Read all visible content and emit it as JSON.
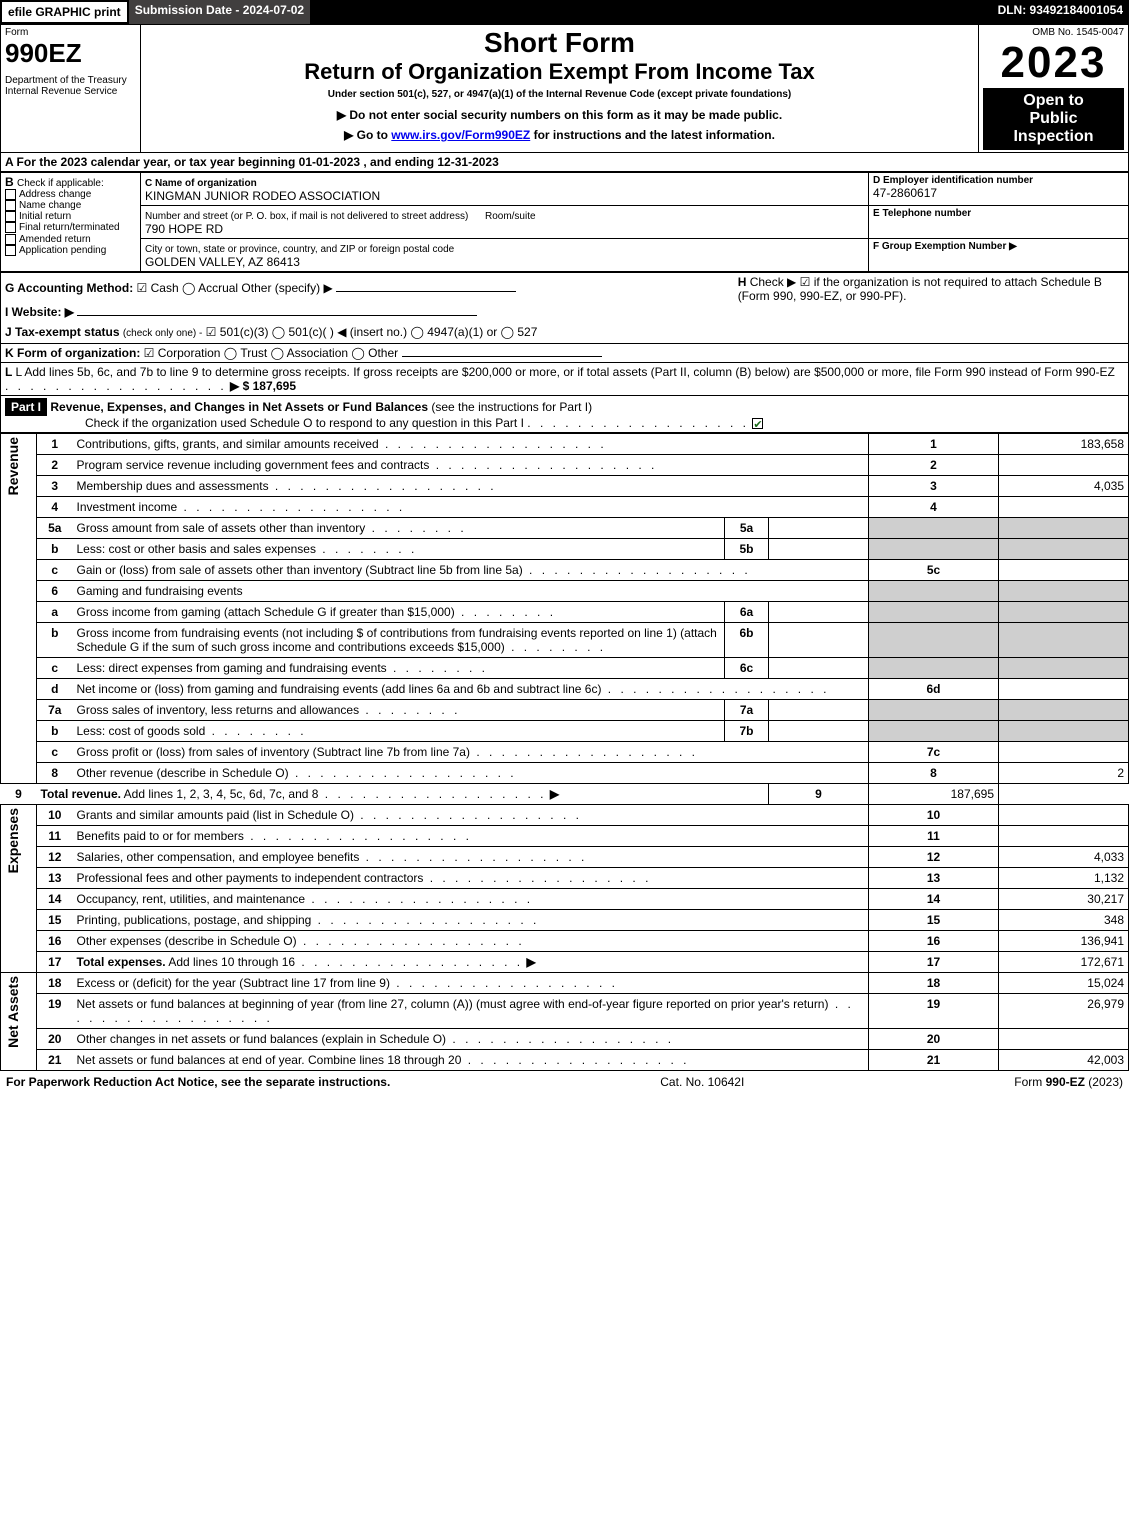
{
  "topbar": {
    "efile": "efile GRAPHIC print",
    "submission_label": "Submission Date - 2024-07-02",
    "dln": "DLN: 93492184001054"
  },
  "header": {
    "form_word": "Form",
    "form_number": "990EZ",
    "dept": "Department of the Treasury\nInternal Revenue Service",
    "short_form": "Short Form",
    "title": "Return of Organization Exempt From Income Tax",
    "under": "Under section 501(c), 527, or 4947(a)(1) of the Internal Revenue Code (except private foundations)",
    "warn": "▶ Do not enter social security numbers on this form as it may be made public.",
    "goto_pre": "▶ Go to ",
    "goto_link": "www.irs.gov/Form990EZ",
    "goto_post": " for instructions and the latest information.",
    "omb": "OMB No. 1545-0047",
    "year": "2023",
    "open": "Open to\nPublic\nInspection"
  },
  "section_a": "A  For the 2023 calendar year, or tax year beginning 01-01-2023 , and ending 12-31-2023",
  "section_b": {
    "label": "B",
    "check_if": "Check if applicable:",
    "opts": [
      "Address change",
      "Name change",
      "Initial return",
      "Final return/terminated",
      "Amended return",
      "Application pending"
    ]
  },
  "section_c": {
    "name_label": "C Name of organization",
    "name": "KINGMAN JUNIOR RODEO ASSOCIATION",
    "street_label": "Number and street (or P. O. box, if mail is not delivered to street address)",
    "room_label": "Room/suite",
    "street": "790 HOPE RD",
    "city_label": "City or town, state or province, country, and ZIP or foreign postal code",
    "city": "GOLDEN VALLEY, AZ  86413"
  },
  "section_d": {
    "label": "D Employer identification number",
    "ein": "47-2860617"
  },
  "section_e": {
    "label": "E Telephone number"
  },
  "section_f": {
    "label": "F Group Exemption Number   ▶"
  },
  "section_g": {
    "label": "G Accounting Method:",
    "opts": "☑ Cash  ◯ Accrual   Other (specify) ▶"
  },
  "section_h": {
    "label": "H",
    "text": "Check ▶ ☑ if the organization is not required to attach Schedule B (Form 990, 990-EZ, or 990-PF)."
  },
  "section_i": {
    "label": "I Website: ▶"
  },
  "section_j": {
    "label": "J Tax-exempt status",
    "sub": "(check only one) -",
    "opts": "☑ 501(c)(3) ◯ 501(c)(  ) ◀ (insert no.) ◯ 4947(a)(1) or ◯ 527"
  },
  "section_k": {
    "label": "K Form of organization:",
    "opts": "☑ Corporation  ◯ Trust  ◯ Association  ◯ Other"
  },
  "section_l": {
    "text": "L Add lines 5b, 6c, and 7b to line 9 to determine gross receipts. If gross receipts are $200,000 or more, or if total assets (Part II, column (B) below) are $500,000 or more, file Form 990 instead of Form 990-EZ",
    "amount_arrow": "▶ $ 187,695"
  },
  "part1": {
    "tag": "Part I",
    "title": "Revenue, Expenses, and Changes in Net Assets or Fund Balances",
    "see": "(see the instructions for Part I)",
    "check_line": "Check if the organization used Schedule O to respond to any question in this Part I",
    "sections": {
      "revenue": "Revenue",
      "expenses": "Expenses",
      "net": "Net Assets"
    }
  },
  "lines": [
    {
      "n": "1",
      "t": "Contributions, gifts, grants, and similar amounts received",
      "box": "1",
      "val": "183,658"
    },
    {
      "n": "2",
      "t": "Program service revenue including government fees and contracts",
      "box": "2",
      "val": ""
    },
    {
      "n": "3",
      "t": "Membership dues and assessments",
      "box": "3",
      "val": "4,035"
    },
    {
      "n": "4",
      "t": "Investment income",
      "box": "4",
      "val": ""
    },
    {
      "n": "5a",
      "t": "Gross amount from sale of assets other than inventory",
      "mid": "5a"
    },
    {
      "n": "b",
      "t": "Less: cost or other basis and sales expenses",
      "mid": "5b"
    },
    {
      "n": "c",
      "t": "Gain or (loss) from sale of assets other than inventory (Subtract line 5b from line 5a)",
      "box": "5c",
      "val": ""
    },
    {
      "n": "6",
      "t": "Gaming and fundraising events",
      "nohline": true
    },
    {
      "n": "a",
      "t": "Gross income from gaming (attach Schedule G if greater than $15,000)",
      "mid": "6a"
    },
    {
      "n": "b",
      "t": "Gross income from fundraising events (not including $                      of contributions from fundraising events reported on line 1) (attach Schedule G if the sum of such gross income and contributions exceeds $15,000)",
      "mid": "6b",
      "extra": ".   ."
    },
    {
      "n": "c",
      "t": "Less: direct expenses from gaming and fundraising events",
      "mid": "6c"
    },
    {
      "n": "d",
      "t": "Net income or (loss) from gaming and fundraising events (add lines 6a and 6b and subtract line 6c)",
      "box": "6d",
      "val": ""
    },
    {
      "n": "7a",
      "t": "Gross sales of inventory, less returns and allowances",
      "mid": "7a"
    },
    {
      "n": "b",
      "t": "Less: cost of goods sold",
      "mid": "7b"
    },
    {
      "n": "c",
      "t": "Gross profit or (loss) from sales of inventory (Subtract line 7b from line 7a)",
      "box": "7c",
      "val": ""
    },
    {
      "n": "8",
      "t": "Other revenue (describe in Schedule O)",
      "box": "8",
      "val": "2"
    },
    {
      "n": "9",
      "t": "Total revenue. Add lines 1, 2, 3, 4, 5c, 6d, 7c, and 8",
      "box": "9",
      "val": "187,695",
      "arrow": true,
      "bold": true
    }
  ],
  "exp_lines": [
    {
      "n": "10",
      "t": "Grants and similar amounts paid (list in Schedule O)",
      "box": "10",
      "val": ""
    },
    {
      "n": "11",
      "t": "Benefits paid to or for members",
      "box": "11",
      "val": ""
    },
    {
      "n": "12",
      "t": "Salaries, other compensation, and employee benefits",
      "box": "12",
      "val": "4,033"
    },
    {
      "n": "13",
      "t": "Professional fees and other payments to independent contractors",
      "box": "13",
      "val": "1,132"
    },
    {
      "n": "14",
      "t": "Occupancy, rent, utilities, and maintenance",
      "box": "14",
      "val": "30,217"
    },
    {
      "n": "15",
      "t": "Printing, publications, postage, and shipping",
      "box": "15",
      "val": "348"
    },
    {
      "n": "16",
      "t": "Other expenses (describe in Schedule O)",
      "box": "16",
      "val": "136,941"
    },
    {
      "n": "17",
      "t": "Total expenses. Add lines 10 through 16",
      "box": "17",
      "val": "172,671",
      "arrow": true,
      "bold": true
    }
  ],
  "net_lines": [
    {
      "n": "18",
      "t": "Excess or (deficit) for the year (Subtract line 17 from line 9)",
      "box": "18",
      "val": "15,024"
    },
    {
      "n": "19",
      "t": "Net assets or fund balances at beginning of year (from line 27, column (A)) (must agree with end-of-year figure reported on prior year's return)",
      "box": "19",
      "val": "26,979"
    },
    {
      "n": "20",
      "t": "Other changes in net assets or fund balances (explain in Schedule O)",
      "box": "20",
      "val": ""
    },
    {
      "n": "21",
      "t": "Net assets or fund balances at end of year. Combine lines 18 through 20",
      "box": "21",
      "val": "42,003"
    }
  ],
  "footer": {
    "left": "For Paperwork Reduction Act Notice, see the separate instructions.",
    "mid": "Cat. No. 10642I",
    "right_pre": "Form ",
    "right_form": "990-EZ",
    "right_post": " (2023)"
  }
}
